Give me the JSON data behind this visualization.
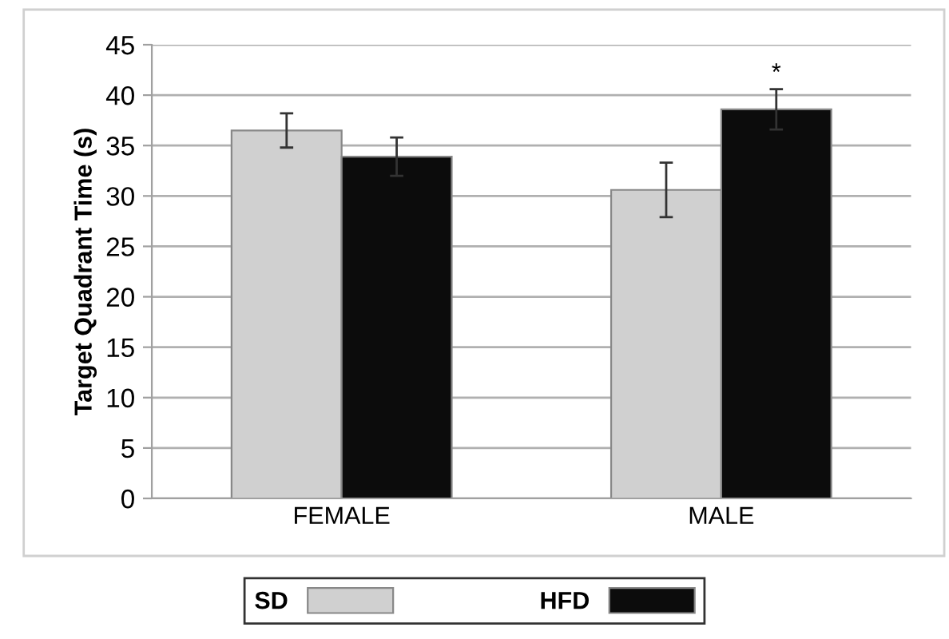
{
  "chart_data": {
    "type": "bar",
    "ylabel": "Target Quadrant Time (s)",
    "categories": [
      "FEMALE",
      "MALE"
    ],
    "series": [
      {
        "name": "SD",
        "color": "#d0d0d0",
        "values": [
          36.5,
          30.6
        ],
        "errors": [
          1.7,
          2.7
        ]
      },
      {
        "name": "HFD",
        "color": "#0c0c0c",
        "values": [
          33.9,
          38.6
        ],
        "errors": [
          1.9,
          2.0
        ]
      }
    ],
    "annotations": [
      "*"
    ],
    "ylim": [
      0,
      45
    ],
    "yticks": [
      0,
      5,
      10,
      15,
      20,
      25,
      30,
      35,
      40,
      45
    ],
    "grid": "y",
    "legend": "bottom"
  }
}
